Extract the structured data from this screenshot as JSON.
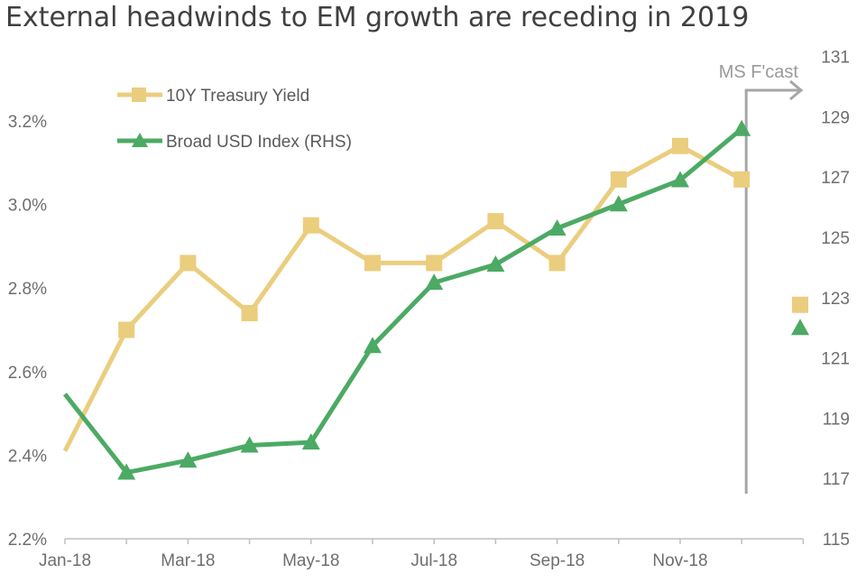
{
  "chart_data": {
    "type": "line",
    "title": "External headwinds to EM growth are receding in 2019",
    "categories": [
      "Jan-18",
      "Feb-18",
      "Mar-18",
      "Apr-18",
      "May-18",
      "Jun-18",
      "Jul-18",
      "Aug-18",
      "Sep-18",
      "Oct-18",
      "Nov-18",
      "Dec-18"
    ],
    "x_tick_labels": [
      "Jan-18",
      "Mar-18",
      "May-18",
      "Jul-18",
      "Sep-18",
      "Nov-18"
    ],
    "y_left": {
      "min": 2.2,
      "max": 3.3,
      "ticks": [
        2.2,
        2.4,
        2.6,
        2.8,
        3.0,
        3.2
      ],
      "tick_labels": [
        "2.2%",
        "2.4%",
        "2.6%",
        "2.8%",
        "3.0%",
        "3.2%"
      ]
    },
    "y_right": {
      "min": 115,
      "max": 131,
      "ticks": [
        115,
        117,
        119,
        121,
        123,
        125,
        127,
        129,
        131
      ],
      "tick_labels": [
        "115",
        "117",
        "119",
        "121",
        "123",
        "125",
        "127",
        "129",
        "131"
      ]
    },
    "series": [
      {
        "name": "10Y Treasury Yield",
        "axis": "left",
        "marker": "square",
        "color": "#ebcd7e",
        "values": [
          2.41,
          2.7,
          2.86,
          2.74,
          2.95,
          2.86,
          2.86,
          2.96,
          2.86,
          3.06,
          3.14,
          3.06
        ]
      },
      {
        "name": "Broad USD Index (RHS)",
        "axis": "right",
        "marker": "triangle",
        "color": "#4caa64",
        "values": [
          119.8,
          117.2,
          117.6,
          118.1,
          118.2,
          121.4,
          123.5,
          124.1,
          125.3,
          126.1,
          126.9,
          128.6
        ]
      }
    ],
    "forecast": [
      {
        "series": "10Y Treasury Yield",
        "value": 2.76
      },
      {
        "series": "Broad USD Index (RHS)",
        "value": 122.0
      }
    ],
    "annotation": {
      "text": "MS F'cast",
      "x_after": "Dec-18"
    },
    "legend": "top-left",
    "grid": false
  }
}
